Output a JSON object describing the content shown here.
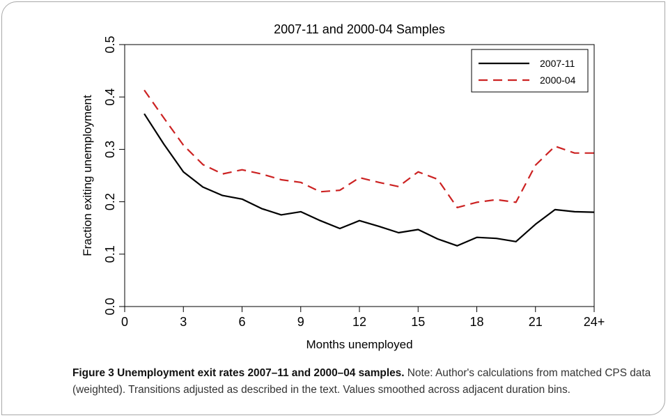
{
  "figure": {
    "caption_title": "Figure 3 Unemployment exit rates 2007–11 and 2000–04 samples.",
    "caption_note": " Note: Author's calculations from matched CPS data (weighted). Transitions adjusted as described in the text. Values smoothed across adjacent duration bins."
  },
  "chart_data": {
    "type": "line",
    "title": "2007-11 and 2000-04 Samples",
    "xlabel": "Months unemployed",
    "ylabel": "Fraction exiting unemployment",
    "xlim": [
      0,
      24
    ],
    "ylim": [
      0,
      0.5
    ],
    "x_ticks": [
      0,
      3,
      6,
      9,
      12,
      15,
      18,
      21,
      24
    ],
    "x_tick_labels": [
      "0",
      "3",
      "6",
      "9",
      "12",
      "15",
      "18",
      "21",
      "24+"
    ],
    "y_ticks": [
      0.0,
      0.1,
      0.2,
      0.3,
      0.4,
      0.5
    ],
    "y_tick_labels": [
      "0.0",
      "0.1",
      "0.2",
      "0.3",
      "0.4",
      "0.5"
    ],
    "grid": false,
    "legend_position": "top-right",
    "x": [
      1,
      2,
      3,
      4,
      5,
      6,
      7,
      8,
      9,
      10,
      11,
      12,
      13,
      14,
      15,
      16,
      17,
      18,
      19,
      20,
      21,
      22,
      23,
      24
    ],
    "series": [
      {
        "name": "2007-11",
        "color": "#000000",
        "style": "solid",
        "values": [
          0.368,
          0.31,
          0.257,
          0.228,
          0.212,
          0.205,
          0.187,
          0.175,
          0.181,
          0.164,
          0.149,
          0.164,
          0.153,
          0.141,
          0.147,
          0.129,
          0.116,
          0.132,
          0.13,
          0.124,
          0.157,
          0.185,
          0.181,
          0.18
        ]
      },
      {
        "name": "2000-04",
        "color": "#cc2222",
        "style": "dashed",
        "values": [
          0.413,
          0.36,
          0.308,
          0.271,
          0.253,
          0.261,
          0.253,
          0.242,
          0.237,
          0.219,
          0.222,
          0.246,
          0.237,
          0.229,
          0.257,
          0.243,
          0.189,
          0.199,
          0.204,
          0.199,
          0.27,
          0.306,
          0.293,
          0.293
        ]
      }
    ]
  }
}
